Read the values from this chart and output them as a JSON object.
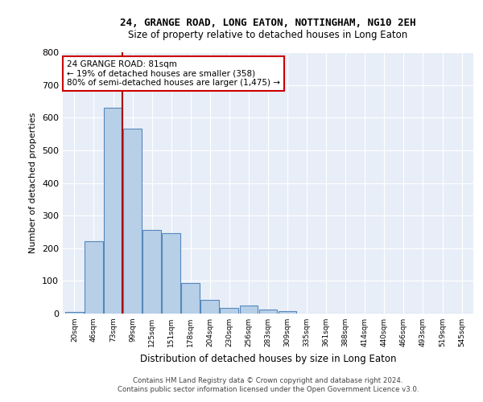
{
  "title1": "24, GRANGE ROAD, LONG EATON, NOTTINGHAM, NG10 2EH",
  "title2": "Size of property relative to detached houses in Long Eaton",
  "xlabel": "Distribution of detached houses by size in Long Eaton",
  "ylabel": "Number of detached properties",
  "bar_color": "#b8cfe8",
  "bar_edge_color": "#5588bb",
  "bg_color": "#e8eef8",
  "grid_color": "#ffffff",
  "annotation_box_color": "#cc0000",
  "vline_color": "#aa0000",
  "annotation_text": "24 GRANGE ROAD: 81sqm\n← 19% of detached houses are smaller (358)\n80% of semi-detached houses are larger (1,475) →",
  "footer1": "Contains HM Land Registry data © Crown copyright and database right 2024.",
  "footer2": "Contains public sector information licensed under the Open Government Licence v3.0.",
  "categories": [
    "20sqm",
    "46sqm",
    "73sqm",
    "99sqm",
    "125sqm",
    "151sqm",
    "178sqm",
    "204sqm",
    "230sqm",
    "256sqm",
    "283sqm",
    "309sqm",
    "335sqm",
    "361sqm",
    "388sqm",
    "414sqm",
    "440sqm",
    "466sqm",
    "493sqm",
    "519sqm",
    "545sqm"
  ],
  "bar_heights": [
    5,
    222,
    630,
    565,
    255,
    245,
    93,
    43,
    18,
    25,
    13,
    8,
    0,
    0,
    0,
    0,
    0,
    0,
    0,
    0,
    0
  ],
  "vline_x_index": 2,
  "ylim": [
    0,
    800
  ],
  "yticks": [
    0,
    100,
    200,
    300,
    400,
    500,
    600,
    700,
    800
  ]
}
